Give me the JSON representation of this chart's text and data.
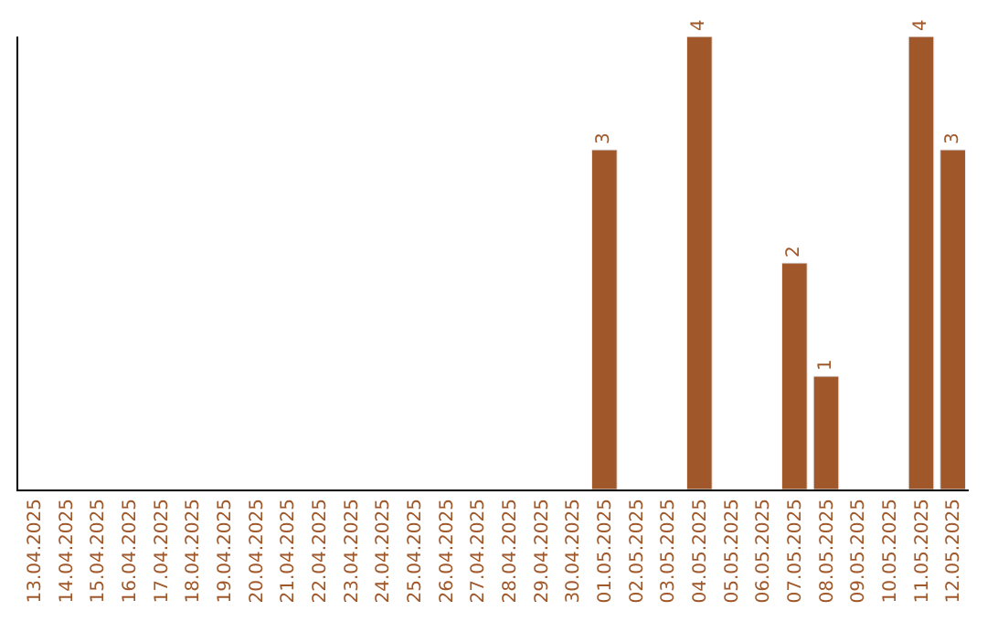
{
  "chart_data": {
    "type": "bar",
    "categories": [
      "13.04.2025",
      "14.04.2025",
      "15.04.2025",
      "16.04.2025",
      "17.04.2025",
      "18.04.2025",
      "19.04.2025",
      "20.04.2025",
      "21.04.2025",
      "22.04.2025",
      "23.04.2025",
      "24.04.2025",
      "25.04.2025",
      "26.04.2025",
      "27.04.2025",
      "28.04.2025",
      "29.04.2025",
      "30.04.2025",
      "01.05.2025",
      "02.05.2025",
      "03.05.2025",
      "04.05.2025",
      "05.05.2025",
      "06.05.2025",
      "07.05.2025",
      "08.05.2025",
      "09.05.2025",
      "10.05.2025",
      "11.05.2025",
      "12.05.2025"
    ],
    "values": [
      null,
      null,
      null,
      null,
      null,
      null,
      null,
      null,
      null,
      null,
      null,
      null,
      null,
      null,
      null,
      null,
      null,
      null,
      3,
      null,
      null,
      4,
      null,
      null,
      2,
      1,
      null,
      null,
      4,
      3
    ],
    "data_labels": true,
    "color": "#a0582a",
    "ylim": [
      0,
      4
    ],
    "legend": false
  }
}
